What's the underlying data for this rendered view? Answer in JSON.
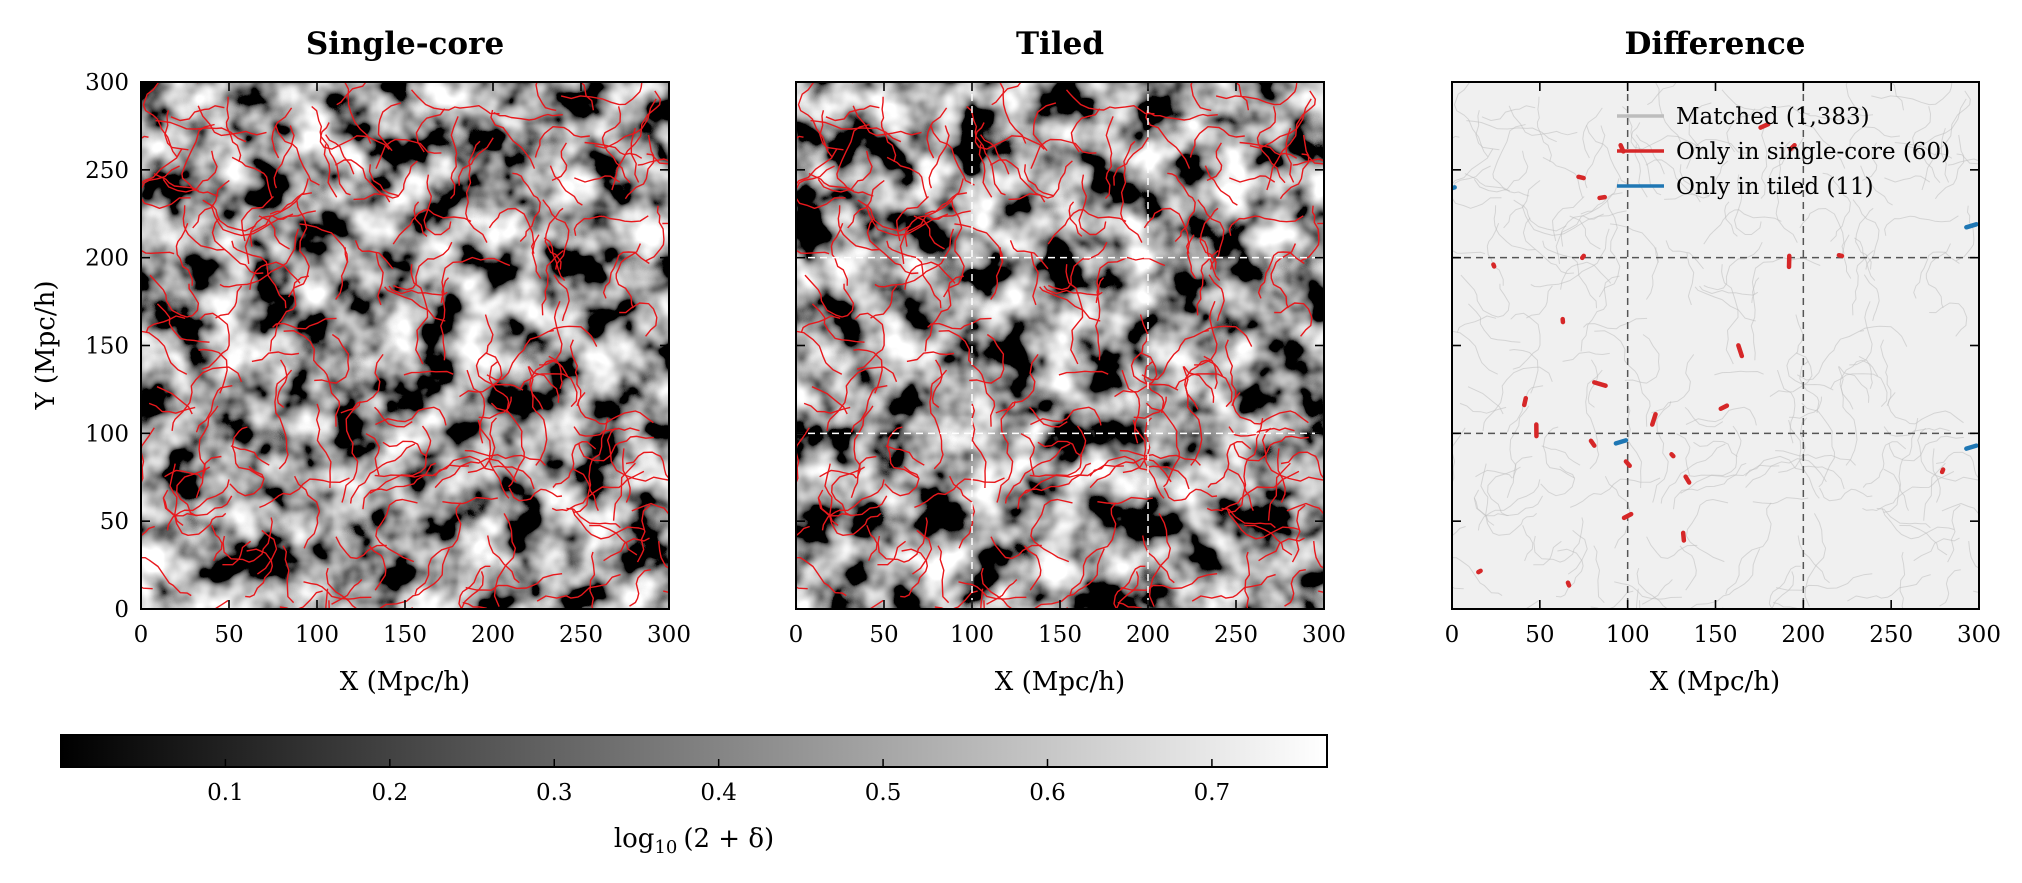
{
  "chart_data": [
    {
      "type": "heatmap",
      "title": "Single-core",
      "xlabel": "X (Mpc/h)",
      "ylabel": "Y (Mpc/h)",
      "xlim": [
        0,
        300
      ],
      "ylim": [
        0,
        300
      ],
      "xticks": [
        "0",
        "50",
        "100",
        "150",
        "200",
        "250",
        "300"
      ],
      "yticks": [
        "0",
        "50",
        "100",
        "150",
        "200",
        "250",
        "300"
      ],
      "background": "log10(2+δ) density field, grayscale colormap",
      "overlay": {
        "name": "filaments",
        "color": "#e8181c"
      }
    },
    {
      "type": "heatmap",
      "title": "Tiled",
      "xlabel": "X (Mpc/h)",
      "ylabel": "",
      "xlim": [
        0,
        300
      ],
      "ylim": [
        0,
        300
      ],
      "xticks": [
        "0",
        "50",
        "100",
        "150",
        "200",
        "250",
        "300"
      ],
      "tile_boundaries": [
        100,
        200
      ],
      "background": "log10(2+δ) density field, grayscale colormap",
      "overlay": {
        "name": "filaments",
        "color": "#e8181c"
      }
    },
    {
      "type": "line",
      "title": "Difference",
      "xlabel": "X (Mpc/h)",
      "ylabel": "",
      "xlim": [
        0,
        300
      ],
      "ylim": [
        0,
        300
      ],
      "xticks": [
        "0",
        "50",
        "100",
        "150",
        "200",
        "250",
        "300"
      ],
      "tile_boundaries": [
        100,
        200
      ],
      "legend_position": "top-right",
      "series": [
        {
          "name": "Matched (1,383)",
          "color": "#bdbdbd"
        },
        {
          "name": "Only in single-core (60)",
          "color": "#d62728"
        },
        {
          "name": "Only in tiled (11)",
          "color": "#1f77b4"
        }
      ]
    }
  ],
  "colorbar": {
    "label_prefix": "log",
    "label_sub": "10",
    "label_suffix": "(2 + δ)",
    "min": 0.0,
    "max": 0.77,
    "ticks": [
      "0.1",
      "0.2",
      "0.3",
      "0.4",
      "0.5",
      "0.6",
      "0.7"
    ],
    "tick_values": [
      0.1,
      0.2,
      0.3,
      0.4,
      0.5,
      0.6,
      0.7
    ]
  }
}
